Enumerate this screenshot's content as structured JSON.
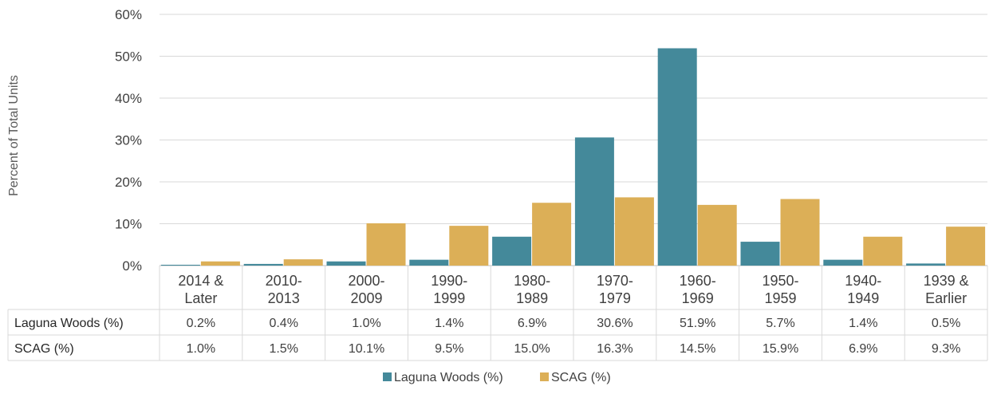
{
  "chart_data": {
    "type": "bar",
    "ylabel": "Percent of Total Units",
    "ylim": [
      0,
      60
    ],
    "yticks": [
      "0%",
      "10%",
      "20%",
      "30%",
      "40%",
      "50%",
      "60%"
    ],
    "grid": true,
    "legend_position": "bottom",
    "categories": [
      [
        "2014 &",
        "Later"
      ],
      [
        "2010-",
        "2013"
      ],
      [
        "2000-",
        "2009"
      ],
      [
        "1990-",
        "1999"
      ],
      [
        "1980-",
        "1989"
      ],
      [
        "1970-",
        "1979"
      ],
      [
        "1960-",
        "1969"
      ],
      [
        "1950-",
        "1959"
      ],
      [
        "1940-",
        "1949"
      ],
      [
        "1939 &",
        "Earlier"
      ]
    ],
    "series": [
      {
        "name": "Laguna Woods (%)",
        "color": "#44899a",
        "values": [
          0.2,
          0.4,
          1.0,
          1.4,
          6.9,
          30.6,
          51.9,
          5.7,
          1.4,
          0.5
        ],
        "labels": [
          "0.2%",
          "0.4%",
          "1.0%",
          "1.4%",
          "6.9%",
          "30.6%",
          "51.9%",
          "5.7%",
          "1.4%",
          "0.5%"
        ]
      },
      {
        "name": "SCAG (%)",
        "color": "#dcaf57",
        "values": [
          1.0,
          1.5,
          10.1,
          9.5,
          15.0,
          16.3,
          14.5,
          15.9,
          6.9,
          9.3
        ],
        "labels": [
          "1.0%",
          "1.5%",
          "10.1%",
          "9.5%",
          "15.0%",
          "16.3%",
          "14.5%",
          "15.9%",
          "6.9%",
          "9.3%"
        ]
      }
    ]
  }
}
